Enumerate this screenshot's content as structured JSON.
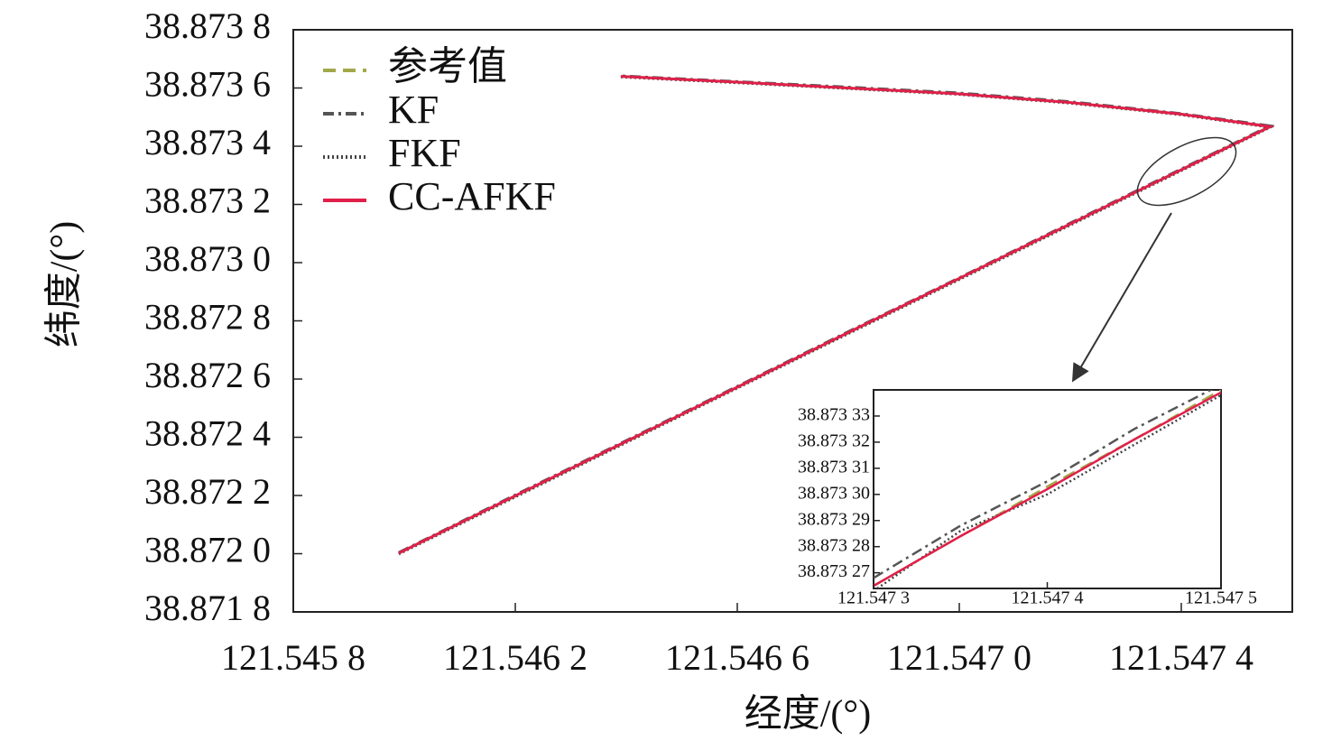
{
  "chart_data": [
    {
      "type": "line",
      "x_label": "经度/(°)",
      "y_label": "纬度/(°)",
      "legend": "upper left",
      "xlim": [
        121.5458,
        121.5476
      ],
      "ylim": [
        38.8718,
        38.8738
      ],
      "xticks": [
        {
          "value": 121.5458,
          "label": "121.545 8"
        },
        {
          "value": 121.5462,
          "label": "121.546 2"
        },
        {
          "value": 121.5466,
          "label": "121.546 6"
        },
        {
          "value": 121.547,
          "label": "121.547 0"
        },
        {
          "value": 121.5474,
          "label": "121.547 4"
        }
      ],
      "yticks": [
        {
          "value": 38.8718,
          "label": "38.871 8"
        },
        {
          "value": 38.872,
          "label": "38.872 0"
        },
        {
          "value": 38.8722,
          "label": "38.872 2"
        },
        {
          "value": 38.8724,
          "label": "38.872 4"
        },
        {
          "value": 38.8726,
          "label": "38.872 6"
        },
        {
          "value": 38.8728,
          "label": "38.872 8"
        },
        {
          "value": 38.873,
          "label": "38.873 0"
        },
        {
          "value": 38.8732,
          "label": "38.873 2"
        },
        {
          "value": 38.8734,
          "label": "38.873 4"
        },
        {
          "value": 38.8736,
          "label": "38.873 6"
        },
        {
          "value": 38.8738,
          "label": "38.873 8"
        }
      ],
      "x": [
        121.54599,
        121.5462,
        121.5464,
        121.5466,
        121.5468,
        121.547,
        121.5472,
        121.5474,
        121.54756,
        121.5474,
        121.5472,
        121.547,
        121.5468,
        121.5466,
        121.54639
      ],
      "series": [
        {
          "name": "参考值",
          "color": "#a3a84a",
          "dash": "dashed",
          "values": [
            38.872002,
            38.872198,
            38.872385,
            38.872572,
            38.872759,
            38.872945,
            38.873132,
            38.873319,
            38.873468,
            38.87351,
            38.87355,
            38.87358,
            38.8736,
            38.87362,
            38.87364
          ]
        },
        {
          "name": "KF",
          "color": "#555555",
          "dash": "dashdot",
          "values": [
            38.872004,
            38.872202,
            38.872389,
            38.872575,
            38.872763,
            38.872948,
            38.873136,
            38.873322,
            38.87347,
            38.873512,
            38.873553,
            38.873583,
            38.873603,
            38.873622,
            38.873642
          ]
        },
        {
          "name": "FKF",
          "color": "#444444",
          "dash": "dotted",
          "values": [
            38.871999,
            38.872195,
            38.872382,
            38.872569,
            38.872756,
            38.872942,
            38.873129,
            38.873316,
            38.873465,
            38.873508,
            38.873548,
            38.873578,
            38.873598,
            38.873618,
            38.873638
          ]
        },
        {
          "name": "CC-AFKF",
          "color": "#e0204a",
          "dash": "solid",
          "values": [
            38.872002,
            38.872199,
            38.872386,
            38.872572,
            38.87276,
            38.872946,
            38.873133,
            38.873319,
            38.873467,
            38.87351,
            38.87355,
            38.87358,
            38.8736,
            38.87362,
            38.87364
          ]
        }
      ]
    },
    {
      "type": "line",
      "xlim": [
        121.5473,
        121.5475
      ],
      "ylim": [
        38.873264,
        38.87334
      ],
      "xticks": [
        {
          "value": 121.5473,
          "label": "121.547 3"
        },
        {
          "value": 121.5474,
          "label": "121.547 4"
        },
        {
          "value": 121.5475,
          "label": "121.547 5"
        }
      ],
      "yticks": [
        {
          "value": 38.87327,
          "label": "38.873 27"
        },
        {
          "value": 38.87328,
          "label": "38.873 28"
        },
        {
          "value": 38.87329,
          "label": "38.873 29"
        },
        {
          "value": 38.8733,
          "label": "38.873 30"
        },
        {
          "value": 38.87331,
          "label": "38.873 31"
        },
        {
          "value": 38.87332,
          "label": "38.873 32"
        },
        {
          "value": 38.87333,
          "label": "38.873 33"
        }
      ],
      "x": [
        121.5473,
        121.54735,
        121.5474,
        121.54745,
        121.5475
      ],
      "series": [
        {
          "name": "参考值",
          "color": "#a3a84a",
          "dash": "dashed",
          "values": [
            38.873265,
            38.873284,
            38.873303,
            38.873321,
            38.87334
          ]
        },
        {
          "name": "KF",
          "color": "#555555",
          "dash": "dashdot",
          "values": [
            38.873268,
            38.873288,
            38.873305,
            38.873325,
            38.873342
          ]
        },
        {
          "name": "FKF",
          "color": "#444444",
          "dash": "dotted",
          "values": [
            38.873263,
            38.873286,
            38.8733,
            38.873319,
            38.873338
          ]
        },
        {
          "name": "CC-AFKF",
          "color": "#e0204a",
          "dash": "solid",
          "values": [
            38.873265,
            38.873284,
            38.873302,
            38.873321,
            38.873339
          ]
        }
      ]
    }
  ]
}
